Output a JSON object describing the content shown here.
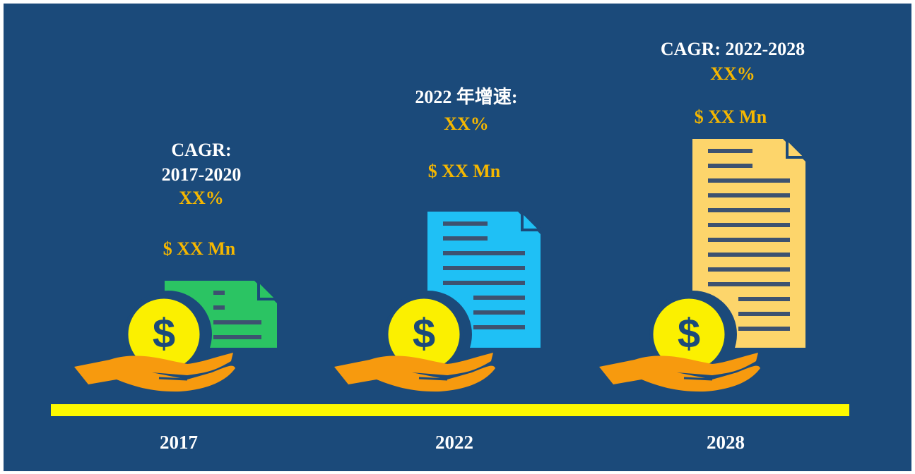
{
  "columns": [
    {
      "heading": [
        "CAGR:",
        "2017-2020"
      ],
      "rate": "XX%",
      "value": "$ XX Mn",
      "year": "2017"
    },
    {
      "heading": [
        "2022 年增速:"
      ],
      "rate": "XX%",
      "value": "$ XX Mn",
      "year": "2022"
    },
    {
      "heading": [
        "CAGR: 2022-2028"
      ],
      "rate": "XX%",
      "value": "$ XX Mn",
      "year": "2028"
    }
  ]
}
